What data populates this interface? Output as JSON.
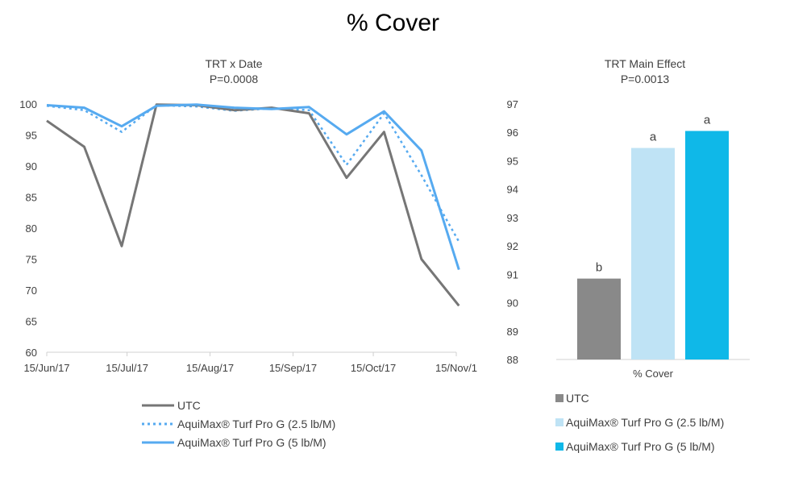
{
  "page": {
    "title": "% Cover"
  },
  "chart_data": [
    {
      "type": "line",
      "title": "TRT x Date",
      "subtitle": "P=0.0008",
      "x": [
        "2017-06-15",
        "2017-06-29",
        "2017-07-13",
        "2017-07-26",
        "2017-08-10",
        "2017-08-24",
        "2017-09-07",
        "2017-09-21",
        "2017-10-05",
        "2017-10-19",
        "2017-11-02",
        "2017-11-16"
      ],
      "x_tick_labels": [
        "15/Jun/17",
        "15/Jul/17",
        "15/Aug/17",
        "15/Sep/17",
        "15/Oct/17",
        "15/Nov/1"
      ],
      "ylim": [
        60,
        100
      ],
      "y_ticks": [
        60,
        65,
        70,
        75,
        80,
        85,
        90,
        95,
        100
      ],
      "grid": false,
      "legend_position": "bottom",
      "series": [
        {
          "name": "UTC",
          "color": "#767676",
          "dash": "solid",
          "values": [
            97.3,
            93.1,
            77.1,
            99.9,
            99.8,
            99.0,
            99.4,
            98.5,
            88.1,
            95.5,
            75.0,
            67.5
          ]
        },
        {
          "name": "AquiMax® Turf Pro G (2.5 lb/M)",
          "color": "#56aaf0",
          "dash": "dotted",
          "values": [
            99.7,
            99.0,
            95.5,
            99.8,
            99.6,
            98.9,
            99.3,
            99.0,
            90.2,
            98.5,
            88.5,
            77.8
          ]
        },
        {
          "name": "AquiMax® Turf Pro G (5 lb/M)",
          "color": "#56aaf0",
          "dash": "solid",
          "values": [
            99.8,
            99.4,
            96.4,
            99.7,
            99.9,
            99.4,
            99.2,
            99.5,
            95.1,
            98.8,
            92.5,
            73.3
          ]
        }
      ]
    },
    {
      "type": "bar",
      "title": "TRT Main Effect",
      "subtitle": "P=0.0013",
      "categories": [
        "% Cover"
      ],
      "ylim": [
        88,
        97
      ],
      "y_ticks": [
        88,
        89,
        90,
        91,
        92,
        93,
        94,
        95,
        96,
        97
      ],
      "grid": false,
      "legend_position": "bottom",
      "series": [
        {
          "name": "UTC",
          "color": "#898989",
          "values": [
            90.85
          ],
          "label": "b"
        },
        {
          "name": "AquiMax® Turf Pro G (2.5 lb/M)",
          "color": "#bfe3f5",
          "values": [
            95.45
          ],
          "label": "a"
        },
        {
          "name": "AquiMax® Turf Pro G (5 lb/M)",
          "color": "#0fb8e8",
          "values": [
            96.05
          ],
          "label": "a"
        }
      ]
    }
  ]
}
